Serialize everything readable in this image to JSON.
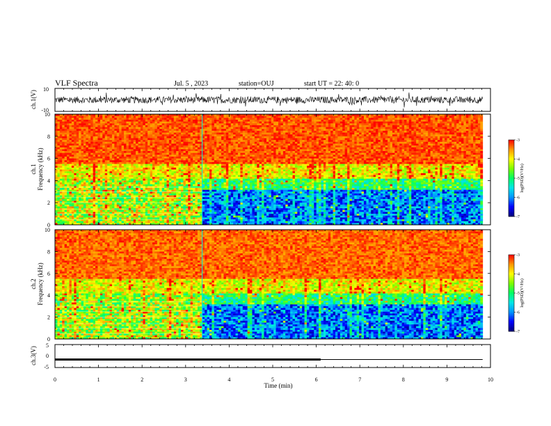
{
  "header": {
    "title": "VLF Spectra",
    "date": "Jul. 5 , 2023",
    "station": "station=OUJ",
    "start": "start UT = 22: 40: 0"
  },
  "colors": {
    "colormap": [
      "#00007a",
      "#0000ff",
      "#0096ff",
      "#00e6e6",
      "#00ff64",
      "#7dff00",
      "#ffff00",
      "#ff9600",
      "#ff0000"
    ],
    "waveform": "#000000",
    "axis": "#000000",
    "background": "#ffffff"
  },
  "chart_data": [
    {
      "type": "line",
      "panel": "ch.1 waveform",
      "ylabel": "ch.1(V)",
      "ylim": [
        -10,
        10
      ],
      "yticks": [
        "10",
        "-10"
      ],
      "xlim": [
        0,
        10
      ],
      "description_values": {
        "approx_amplitude_V": 3
      }
    },
    {
      "type": "heatmap",
      "panel": "ch.1 spectrogram",
      "ylabel": "ch.1\nFrequency (kHz)",
      "ylabel_lines": [
        "ch.1",
        "Frequency (kHz)"
      ],
      "ylim": [
        0,
        10
      ],
      "yticks": [
        "0",
        "2",
        "4",
        "6",
        "8",
        "10"
      ],
      "xlim": [
        0,
        10
      ],
      "data_end_min": 9.82,
      "change_time_min": 3.38,
      "colorbar": {
        "label": "log(PSD)(V²/Hz)",
        "range": [
          -7,
          -3
        ],
        "ticks": [
          "-3",
          "-4",
          "-5",
          "-6",
          "-7"
        ]
      }
    },
    {
      "type": "heatmap",
      "panel": "ch.2 spectrogram",
      "ylabel": "ch.2\nFrequency (kHz)",
      "ylabel_lines": [
        "ch.2",
        "Frequency (kHz)"
      ],
      "ylim": [
        0,
        10
      ],
      "yticks": [
        "0",
        "2",
        "4",
        "6",
        "8",
        "10"
      ],
      "xlim": [
        0,
        10
      ],
      "data_end_min": 9.82,
      "change_time_min": 3.38,
      "colorbar": {
        "label": "log(PSD)(V²/Hz)",
        "range": [
          -7,
          -3
        ],
        "ticks": [
          "-3",
          "-4",
          "-5",
          "-6",
          "-7"
        ]
      }
    },
    {
      "type": "line",
      "panel": "ch.3 waveform",
      "ylabel": "ch.3(V)",
      "ylim": [
        -5,
        5
      ],
      "yticks": [
        "5",
        "0",
        "-5"
      ],
      "xlim": [
        0,
        10
      ],
      "segments": [
        {
          "x": [
            0,
            6.1
          ],
          "y": [
            -1.5,
            -1.5
          ],
          "weight": "thick"
        },
        {
          "x": [
            6.1,
            9.82
          ],
          "y": [
            -1.5,
            -1.5
          ],
          "weight": "thin"
        }
      ]
    }
  ],
  "xaxis": {
    "label": "Time (min)",
    "ticks": [
      "0",
      "1",
      "2",
      "3",
      "4",
      "5",
      "6",
      "7",
      "8",
      "9",
      "10"
    ]
  }
}
